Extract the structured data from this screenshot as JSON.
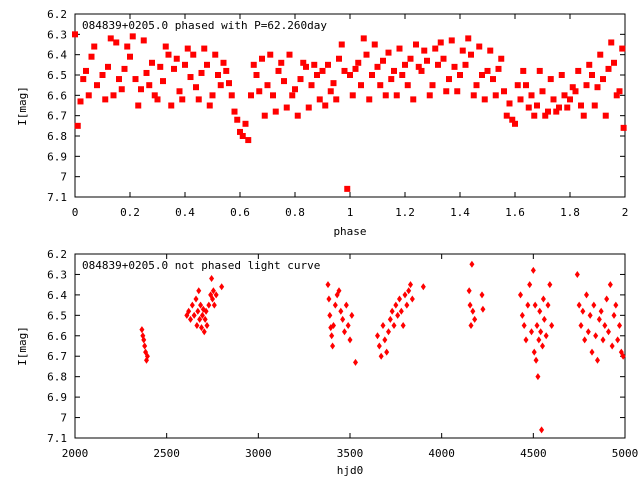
{
  "chart_data": [
    {
      "type": "scatter",
      "title": "084839+0205.0 phased with P=62.260day",
      "xlabel": "phase",
      "ylabel": "I[mag]",
      "xlim": [
        0,
        2
      ],
      "ylim": [
        6.2,
        7.1
      ],
      "y_inverted": true,
      "x_ticks": [
        "0",
        "0.2",
        "0.4",
        "0.6",
        "0.8",
        "1",
        "1.2",
        "1.4",
        "1.6",
        "1.8",
        "2"
      ],
      "y_ticks": [
        "6.2",
        "6.3",
        "6.4",
        "6.5",
        "6.6",
        "6.7",
        "6.8",
        "6.9",
        "7",
        "7.1"
      ],
      "marker_color": "#ff0000",
      "marker_shape": "box",
      "points": [
        [
          0.02,
          6.63
        ],
        [
          0.03,
          6.52
        ],
        [
          0.04,
          6.48
        ],
        [
          0.06,
          6.41
        ],
        [
          0.08,
          6.55
        ],
        [
          0.1,
          6.5
        ],
        [
          0.12,
          6.46
        ],
        [
          0.14,
          6.6
        ],
        [
          0.16,
          6.52
        ],
        [
          0.18,
          6.47
        ],
        [
          0.2,
          6.41
        ],
        [
          0.22,
          6.52
        ],
        [
          0.24,
          6.57
        ],
        [
          0.26,
          6.49
        ],
        [
          0.28,
          6.44
        ],
        [
          0.3,
          6.62
        ],
        [
          0.32,
          6.53
        ],
        [
          0.34,
          6.4
        ],
        [
          0.36,
          6.47
        ],
        [
          0.38,
          6.58
        ],
        [
          0.4,
          6.45
        ],
        [
          0.42,
          6.51
        ],
        [
          0.44,
          6.56
        ],
        [
          0.46,
          6.49
        ],
        [
          0.48,
          6.45
        ],
        [
          0.5,
          6.6
        ],
        [
          0.52,
          6.5
        ],
        [
          0.54,
          6.44
        ],
        [
          0.56,
          6.54
        ],
        [
          0.58,
          6.68
        ],
        [
          0.6,
          6.78
        ],
        [
          0.62,
          6.74
        ],
        [
          0.64,
          6.6
        ],
        [
          0.66,
          6.5
        ],
        [
          0.68,
          6.42
        ],
        [
          0.7,
          6.55
        ],
        [
          0.72,
          6.6
        ],
        [
          0.74,
          6.48
        ],
        [
          0.76,
          6.53
        ],
        [
          0.78,
          6.4
        ],
        [
          0.8,
          6.57
        ],
        [
          0.82,
          6.52
        ],
        [
          0.84,
          6.46
        ],
        [
          0.86,
          6.55
        ],
        [
          0.88,
          6.5
        ],
        [
          0.9,
          6.48
        ],
        [
          0.92,
          6.45
        ],
        [
          0.94,
          6.54
        ],
        [
          0.96,
          6.42
        ],
        [
          0.98,
          6.48
        ],
        [
          1.0,
          6.5
        ],
        [
          1.02,
          6.47
        ],
        [
          1.04,
          6.55
        ],
        [
          1.06,
          6.4
        ],
        [
          1.08,
          6.5
        ],
        [
          1.1,
          6.46
        ],
        [
          1.12,
          6.43
        ],
        [
          1.14,
          6.39
        ],
        [
          1.16,
          6.48
        ],
        [
          1.18,
          6.37
        ],
        [
          1.2,
          6.45
        ],
        [
          1.22,
          6.42
        ],
        [
          1.24,
          6.35
        ],
        [
          1.26,
          6.48
        ],
        [
          1.28,
          6.43
        ],
        [
          1.3,
          6.55
        ],
        [
          1.32,
          6.45
        ],
        [
          1.34,
          6.42
        ],
        [
          1.36,
          6.52
        ],
        [
          1.38,
          6.46
        ],
        [
          1.4,
          6.5
        ],
        [
          1.42,
          6.45
        ],
        [
          1.44,
          6.4
        ],
        [
          1.46,
          6.55
        ],
        [
          1.48,
          6.5
        ],
        [
          1.5,
          6.48
        ],
        [
          1.52,
          6.52
        ],
        [
          1.54,
          6.47
        ],
        [
          1.56,
          6.58
        ],
        [
          1.58,
          6.64
        ],
        [
          1.6,
          6.74
        ],
        [
          1.62,
          6.62
        ],
        [
          1.64,
          6.55
        ],
        [
          1.66,
          6.6
        ],
        [
          1.68,
          6.65
        ],
        [
          1.7,
          6.58
        ],
        [
          1.72,
          6.68
        ],
        [
          1.74,
          6.62
        ],
        [
          1.76,
          6.66
        ],
        [
          1.78,
          6.6
        ],
        [
          1.8,
          6.62
        ],
        [
          1.82,
          6.58
        ],
        [
          1.84,
          6.65
        ],
        [
          1.86,
          6.55
        ],
        [
          1.88,
          6.5
        ],
        [
          1.9,
          6.56
        ],
        [
          1.92,
          6.52
        ],
        [
          1.94,
          6.47
        ],
        [
          1.96,
          6.44
        ],
        [
          1.98,
          6.58
        ],
        [
          0.0,
          6.3
        ],
        [
          0.01,
          6.75
        ],
        [
          0.05,
          6.6
        ],
        [
          0.07,
          6.36
        ],
        [
          0.11,
          6.62
        ],
        [
          0.13,
          6.32
        ],
        [
          0.15,
          6.34
        ],
        [
          0.17,
          6.57
        ],
        [
          0.19,
          6.36
        ],
        [
          0.21,
          6.31
        ],
        [
          0.23,
          6.65
        ],
        [
          0.25,
          6.33
        ],
        [
          0.27,
          6.55
        ],
        [
          0.29,
          6.6
        ],
        [
          0.31,
          6.46
        ],
        [
          0.33,
          6.36
        ],
        [
          0.35,
          6.65
        ],
        [
          0.37,
          6.42
        ],
        [
          0.39,
          6.62
        ],
        [
          0.41,
          6.37
        ],
        [
          0.43,
          6.4
        ],
        [
          0.45,
          6.62
        ],
        [
          0.47,
          6.37
        ],
        [
          0.49,
          6.65
        ],
        [
          0.51,
          6.4
        ],
        [
          0.53,
          6.55
        ],
        [
          0.55,
          6.48
        ],
        [
          0.57,
          6.6
        ],
        [
          0.59,
          6.72
        ],
        [
          0.61,
          6.8
        ],
        [
          0.63,
          6.82
        ],
        [
          0.65,
          6.45
        ],
        [
          0.67,
          6.58
        ],
        [
          0.69,
          6.7
        ],
        [
          0.71,
          6.4
        ],
        [
          0.73,
          6.68
        ],
        [
          0.75,
          6.44
        ],
        [
          0.77,
          6.66
        ],
        [
          0.79,
          6.6
        ],
        [
          0.81,
          6.7
        ],
        [
          0.83,
          6.44
        ],
        [
          0.85,
          6.66
        ],
        [
          0.87,
          6.45
        ],
        [
          0.89,
          6.62
        ],
        [
          0.91,
          6.65
        ],
        [
          0.93,
          6.58
        ],
        [
          0.95,
          6.62
        ],
        [
          0.97,
          6.35
        ],
        [
          0.99,
          7.06
        ],
        [
          1.01,
          6.6
        ],
        [
          1.03,
          6.44
        ],
        [
          1.05,
          6.32
        ],
        [
          1.07,
          6.62
        ],
        [
          1.09,
          6.35
        ],
        [
          1.11,
          6.55
        ],
        [
          1.13,
          6.6
        ],
        [
          1.15,
          6.52
        ],
        [
          1.17,
          6.6
        ],
        [
          1.19,
          6.5
        ],
        [
          1.21,
          6.55
        ],
        [
          1.23,
          6.62
        ],
        [
          1.25,
          6.46
        ],
        [
          1.27,
          6.38
        ],
        [
          1.29,
          6.6
        ],
        [
          1.31,
          6.37
        ],
        [
          1.33,
          6.34
        ],
        [
          1.35,
          6.58
        ],
        [
          1.37,
          6.33
        ],
        [
          1.39,
          6.58
        ],
        [
          1.41,
          6.38
        ],
        [
          1.43,
          6.32
        ],
        [
          1.45,
          6.6
        ],
        [
          1.47,
          6.36
        ],
        [
          1.49,
          6.62
        ],
        [
          1.51,
          6.38
        ],
        [
          1.53,
          6.6
        ],
        [
          1.55,
          6.42
        ],
        [
          1.57,
          6.7
        ],
        [
          1.59,
          6.72
        ],
        [
          1.61,
          6.55
        ],
        [
          1.63,
          6.48
        ],
        [
          1.65,
          6.66
        ],
        [
          1.67,
          6.7
        ],
        [
          1.69,
          6.48
        ],
        [
          1.71,
          6.7
        ],
        [
          1.73,
          6.52
        ],
        [
          1.75,
          6.68
        ],
        [
          1.77,
          6.5
        ],
        [
          1.79,
          6.66
        ],
        [
          1.81,
          6.56
        ],
        [
          1.83,
          6.48
        ],
        [
          1.85,
          6.7
        ],
        [
          1.87,
          6.45
        ],
        [
          1.89,
          6.65
        ],
        [
          1.91,
          6.4
        ],
        [
          1.93,
          6.7
        ],
        [
          1.95,
          6.34
        ],
        [
          1.97,
          6.6
        ],
        [
          1.99,
          6.37
        ],
        [
          1.995,
          6.76
        ]
      ]
    },
    {
      "type": "scatter",
      "title": "084839+0205.0 not phased light curve",
      "xlabel": "hjd0",
      "ylabel": "I[mag]",
      "xlim": [
        2000,
        5000
      ],
      "ylim": [
        6.2,
        7.1
      ],
      "y_inverted": true,
      "x_ticks": [
        "2000",
        "2500",
        "3000",
        "3500",
        "4000",
        "4500",
        "5000"
      ],
      "y_ticks": [
        "6.2",
        "6.3",
        "6.4",
        "6.5",
        "6.6",
        "6.7",
        "6.8",
        "6.9",
        "7",
        "7.1"
      ],
      "marker_color": "#ff0000",
      "marker_shape": "diamond",
      "points": [
        [
          2365,
          6.57
        ],
        [
          2370,
          6.6
        ],
        [
          2375,
          6.62
        ],
        [
          2380,
          6.65
        ],
        [
          2385,
          6.68
        ],
        [
          2390,
          6.72
        ],
        [
          2395,
          6.7
        ],
        [
          2610,
          6.5
        ],
        [
          2620,
          6.48
        ],
        [
          2630,
          6.52
        ],
        [
          2640,
          6.45
        ],
        [
          2650,
          6.5
        ],
        [
          2660,
          6.42
        ],
        [
          2665,
          6.55
        ],
        [
          2670,
          6.48
        ],
        [
          2675,
          6.38
        ],
        [
          2680,
          6.52
        ],
        [
          2685,
          6.45
        ],
        [
          2690,
          6.56
        ],
        [
          2695,
          6.5
        ],
        [
          2700,
          6.47
        ],
        [
          2705,
          6.58
        ],
        [
          2710,
          6.52
        ],
        [
          2715,
          6.48
        ],
        [
          2720,
          6.55
        ],
        [
          2730,
          6.45
        ],
        [
          2740,
          6.4
        ],
        [
          2745,
          6.32
        ],
        [
          2750,
          6.42
        ],
        [
          2755,
          6.38
        ],
        [
          2760,
          6.45
        ],
        [
          2770,
          6.4
        ],
        [
          2800,
          6.36
        ],
        [
          3380,
          6.35
        ],
        [
          3385,
          6.42
        ],
        [
          3390,
          6.5
        ],
        [
          3395,
          6.56
        ],
        [
          3400,
          6.6
        ],
        [
          3405,
          6.65
        ],
        [
          3410,
          6.55
        ],
        [
          3420,
          6.45
        ],
        [
          3430,
          6.4
        ],
        [
          3440,
          6.38
        ],
        [
          3450,
          6.48
        ],
        [
          3460,
          6.52
        ],
        [
          3470,
          6.58
        ],
        [
          3480,
          6.45
        ],
        [
          3490,
          6.55
        ],
        [
          3500,
          6.62
        ],
        [
          3510,
          6.5
        ],
        [
          3530,
          6.73
        ],
        [
          3650,
          6.6
        ],
        [
          3660,
          6.65
        ],
        [
          3670,
          6.7
        ],
        [
          3680,
          6.55
        ],
        [
          3690,
          6.62
        ],
        [
          3700,
          6.68
        ],
        [
          3710,
          6.58
        ],
        [
          3720,
          6.52
        ],
        [
          3730,
          6.48
        ],
        [
          3740,
          6.55
        ],
        [
          3750,
          6.45
        ],
        [
          3760,
          6.5
        ],
        [
          3770,
          6.42
        ],
        [
          3780,
          6.48
        ],
        [
          3790,
          6.55
        ],
        [
          3800,
          6.4
        ],
        [
          3810,
          6.45
        ],
        [
          3820,
          6.38
        ],
        [
          3830,
          6.35
        ],
        [
          3840,
          6.42
        ],
        [
          3900,
          6.36
        ],
        [
          4150,
          6.38
        ],
        [
          4155,
          6.45
        ],
        [
          4160,
          6.55
        ],
        [
          4165,
          6.25
        ],
        [
          4170,
          6.48
        ],
        [
          4180,
          6.52
        ],
        [
          4220,
          6.4
        ],
        [
          4225,
          6.47
        ],
        [
          4430,
          6.4
        ],
        [
          4440,
          6.5
        ],
        [
          4450,
          6.55
        ],
        [
          4460,
          6.62
        ],
        [
          4470,
          6.45
        ],
        [
          4480,
          6.35
        ],
        [
          4490,
          6.58
        ],
        [
          4500,
          6.28
        ],
        [
          4505,
          6.68
        ],
        [
          4510,
          6.45
        ],
        [
          4515,
          6.72
        ],
        [
          4520,
          6.55
        ],
        [
          4525,
          6.8
        ],
        [
          4530,
          6.62
        ],
        [
          4535,
          6.48
        ],
        [
          4540,
          6.58
        ],
        [
          4545,
          7.06
        ],
        [
          4550,
          6.65
        ],
        [
          4555,
          6.42
        ],
        [
          4560,
          6.52
        ],
        [
          4570,
          6.6
        ],
        [
          4580,
          6.45
        ],
        [
          4590,
          6.35
        ],
        [
          4600,
          6.55
        ],
        [
          4740,
          6.3
        ],
        [
          4750,
          6.45
        ],
        [
          4760,
          6.55
        ],
        [
          4770,
          6.48
        ],
        [
          4780,
          6.62
        ],
        [
          4790,
          6.4
        ],
        [
          4800,
          6.58
        ],
        [
          4810,
          6.5
        ],
        [
          4820,
          6.68
        ],
        [
          4830,
          6.45
        ],
        [
          4840,
          6.6
        ],
        [
          4850,
          6.72
        ],
        [
          4860,
          6.52
        ],
        [
          4870,
          6.48
        ],
        [
          4880,
          6.62
        ],
        [
          4890,
          6.55
        ],
        [
          4900,
          6.42
        ],
        [
          4910,
          6.58
        ],
        [
          4920,
          6.35
        ],
        [
          4930,
          6.65
        ],
        [
          4940,
          6.5
        ],
        [
          4950,
          6.45
        ],
        [
          4960,
          6.62
        ],
        [
          4970,
          6.55
        ],
        [
          4980,
          6.68
        ],
        [
          4990,
          6.7
        ]
      ]
    }
  ]
}
